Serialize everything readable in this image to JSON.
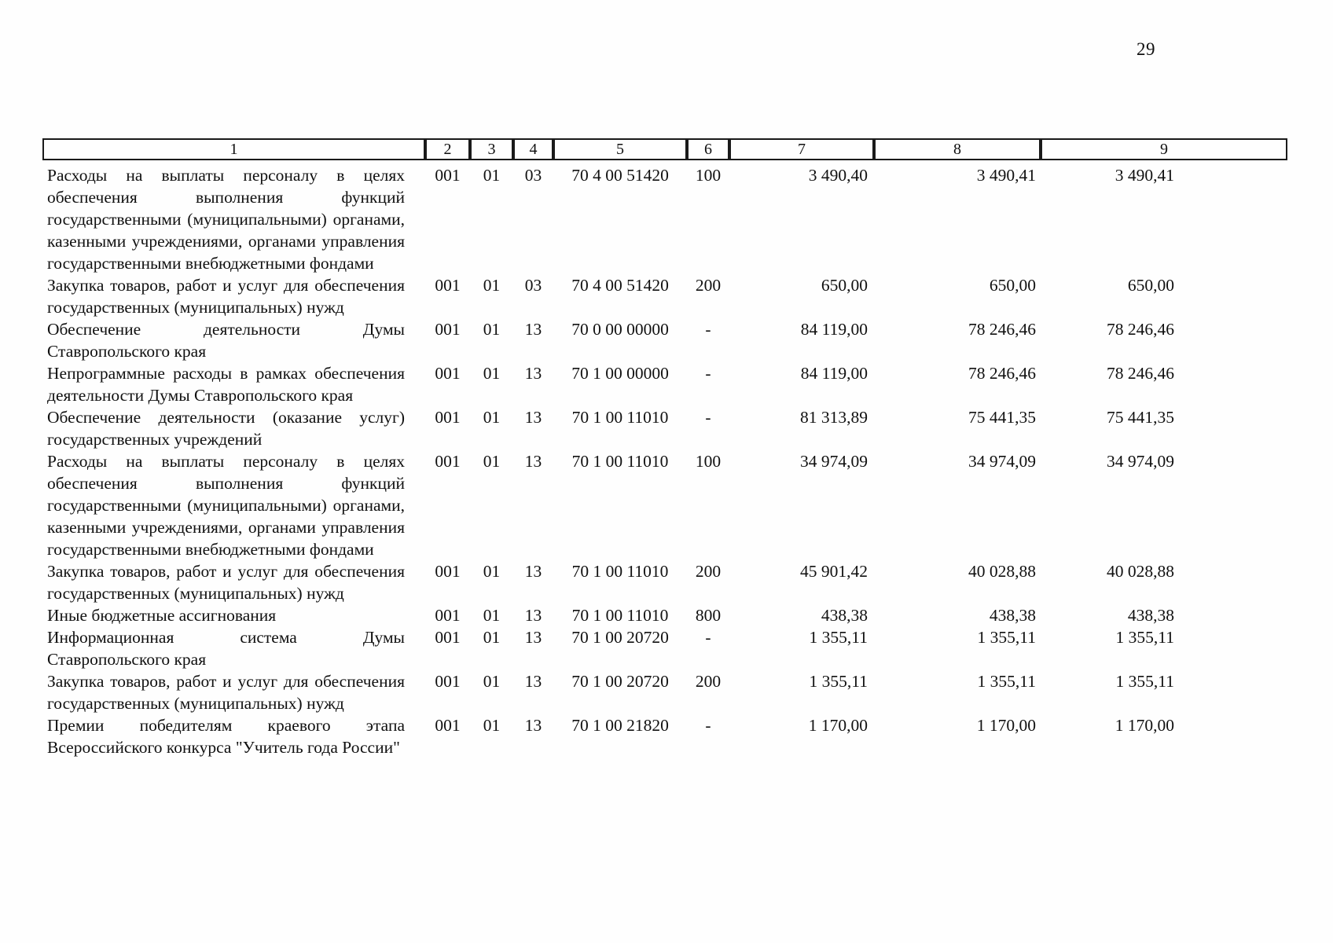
{
  "page": {
    "number": "29"
  },
  "table": {
    "header": [
      "1",
      "2",
      "3",
      "4",
      "5",
      "6",
      "7",
      "8",
      "9"
    ],
    "rows": [
      {
        "name": "Расходы на выплаты персоналу в целях обеспечения выполнения функций государственными (муниципальными) органами, казенными учреждениями, органами управления государственными внебюджетными фондами",
        "col2": "001",
        "col3": "01",
        "col4": "03",
        "col5": "70 4 00 51420",
        "col6": "100",
        "col7": "3 490,40",
        "col8": "3 490,41",
        "col9": "3 490,41"
      },
      {
        "name": "Закупка товаров, работ и услуг для обеспечения государственных (муниципальных) нужд",
        "col2": "001",
        "col3": "01",
        "col4": "03",
        "col5": "70 4 00 51420",
        "col6": "200",
        "col7": "650,00",
        "col8": "650,00",
        "col9": "650,00"
      },
      {
        "name": "Обеспечение деятельности Думы Ставропольского края",
        "col2": "001",
        "col3": "01",
        "col4": "13",
        "col5": "70 0 00 00000",
        "col6": "-",
        "col7": "84 119,00",
        "col8": "78 246,46",
        "col9": "78 246,46"
      },
      {
        "name": "Непрограммные расходы в рамках обеспечения деятельности Думы Ставропольского края",
        "col2": "001",
        "col3": "01",
        "col4": "13",
        "col5": "70 1 00 00000",
        "col6": "-",
        "col7": "84 119,00",
        "col8": "78 246,46",
        "col9": "78 246,46"
      },
      {
        "name": "Обеспечение деятельности (оказание услуг) государственных учреждений",
        "col2": "001",
        "col3": "01",
        "col4": "13",
        "col5": "70 1 00 11010",
        "col6": "-",
        "col7": "81 313,89",
        "col8": "75 441,35",
        "col9": "75 441,35"
      },
      {
        "name": "Расходы на выплаты персоналу в целях обеспечения выполнения функций государственными (муниципальными) органами, казенными учреждениями, органами управления государственными внебюджетными фондами",
        "col2": "001",
        "col3": "01",
        "col4": "13",
        "col5": "70 1 00 11010",
        "col6": "100",
        "col7": "34 974,09",
        "col8": "34 974,09",
        "col9": "34 974,09"
      },
      {
        "name": "Закупка товаров, работ и услуг для обеспечения государственных (муниципальных) нужд",
        "col2": "001",
        "col3": "01",
        "col4": "13",
        "col5": "70 1 00 11010",
        "col6": "200",
        "col7": "45 901,42",
        "col8": "40 028,88",
        "col9": "40 028,88"
      },
      {
        "name": "Иные бюджетные ассигнования",
        "col2": "001",
        "col3": "01",
        "col4": "13",
        "col5": "70 1 00 11010",
        "col6": "800",
        "col7": "438,38",
        "col8": "438,38",
        "col9": "438,38"
      },
      {
        "name": "Информационная система Думы Ставропольского края",
        "col2": "001",
        "col3": "01",
        "col4": "13",
        "col5": "70 1 00 20720",
        "col6": "-",
        "col7": "1 355,11",
        "col8": "1 355,11",
        "col9": "1 355,11"
      },
      {
        "name": "Закупка товаров, работ и услуг для обеспечения государственных (муниципальных) нужд",
        "col2": "001",
        "col3": "01",
        "col4": "13",
        "col5": "70 1 00 20720",
        "col6": "200",
        "col7": "1 355,11",
        "col8": "1 355,11",
        "col9": "1 355,11"
      },
      {
        "name": "Премии победителям краевого этапа Всероссийского конкурса \"Учитель года России\"",
        "col2": "001",
        "col3": "01",
        "col4": "13",
        "col5": "70 1 00 21820",
        "col6": "-",
        "col7": "1 170,00",
        "col8": "1 170,00",
        "col9": "1 170,00"
      }
    ]
  }
}
